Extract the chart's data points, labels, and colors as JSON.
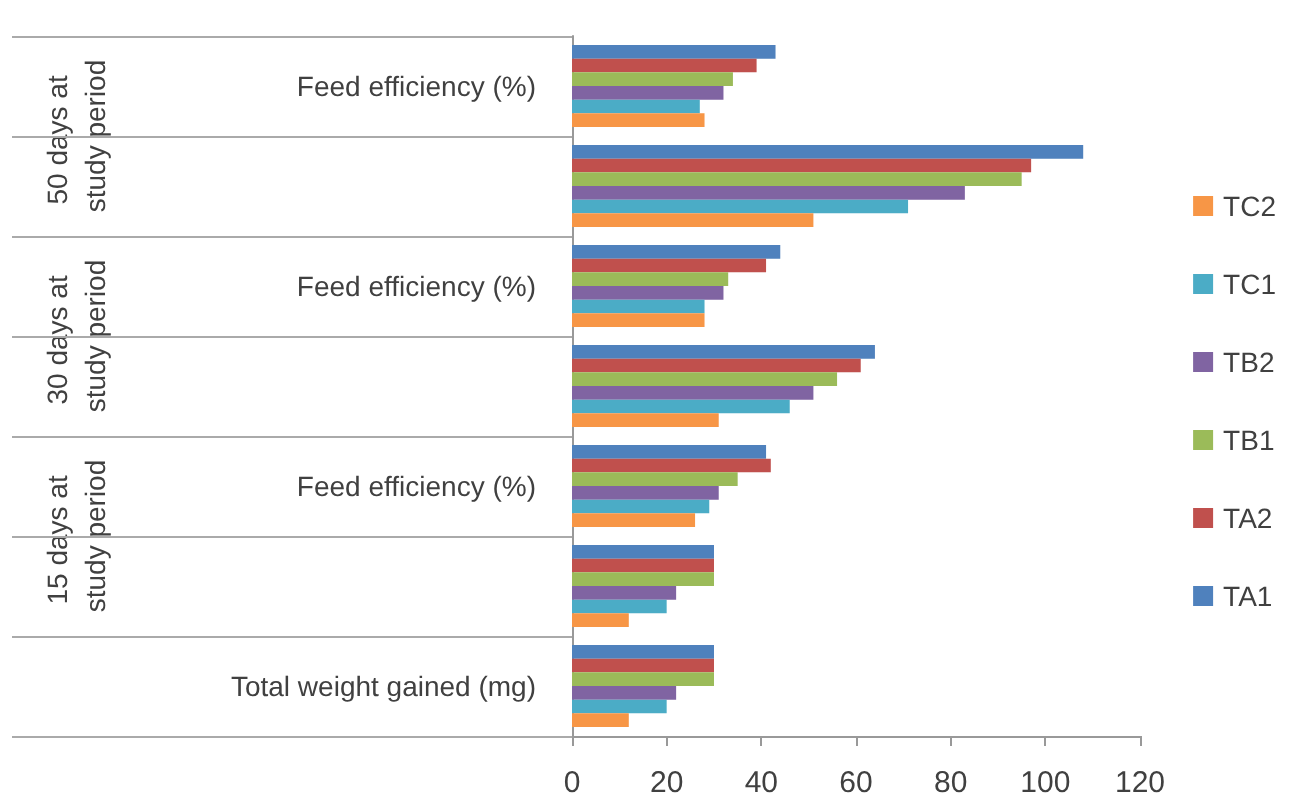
{
  "chart_data": {
    "type": "bar",
    "orientation": "horizontal",
    "categories": [
      "Feed efficiency (%)",
      null,
      "Feed efficiency (%)",
      null,
      "Feed efficiency (%)",
      null,
      "Total weight gained (mg)"
    ],
    "series": [
      {
        "name": "TA1",
        "color": "#4f81bd",
        "values": [
          43,
          108,
          44,
          64,
          41,
          30,
          30
        ]
      },
      {
        "name": "TA2",
        "color": "#c0504d",
        "values": [
          39,
          97,
          41,
          61,
          42,
          30,
          30
        ]
      },
      {
        "name": "TB1",
        "color": "#9bbb59",
        "values": [
          34,
          95,
          33,
          56,
          35,
          30,
          30
        ]
      },
      {
        "name": "TB2",
        "color": "#8064a2",
        "values": [
          32,
          83,
          32,
          51,
          31,
          22,
          22
        ]
      },
      {
        "name": "TC1",
        "color": "#4bacc6",
        "values": [
          27,
          71,
          28,
          46,
          29,
          20,
          20
        ]
      },
      {
        "name": "TC2",
        "color": "#f79646",
        "values": [
          28,
          51,
          28,
          31,
          26,
          12,
          12
        ]
      }
    ],
    "xlim": [
      0,
      120
    ],
    "xticks": [
      0,
      20,
      40,
      60,
      80,
      100,
      120
    ],
    "grid": false,
    "legend": "right",
    "annotations": [
      "50 days at study period",
      "30 days at study period",
      "15 days at study period"
    ]
  }
}
